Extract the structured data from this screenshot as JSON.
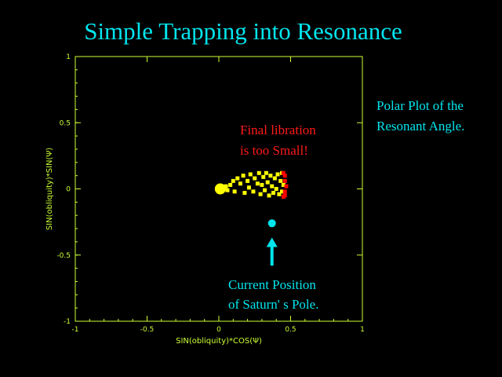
{
  "slide": {
    "title": "Simple Trapping into Resonance",
    "side_note": [
      "Polar Plot of the",
      "Resonant Angle."
    ],
    "annotation_red": [
      "Final libration",
      "is too Small!"
    ],
    "annotation_cyan": [
      "Current Position",
      "of Saturn' s Pole."
    ]
  },
  "colors": {
    "background": "#000000",
    "axes": "#ccff33",
    "text_cyan": "#00e5ee",
    "text_red": "#ff1a1a",
    "points_yellow": "#ffff00",
    "points_red": "#ff0000",
    "marker": "#00e5ee"
  },
  "chart_data": {
    "type": "scatter",
    "xlabel": "SIN(obliquity)*COS(Ψ)",
    "ylabel": "SIN(obliquity)*SIN(Ψ)",
    "xlim": [
      -1,
      1
    ],
    "ylim": [
      -1,
      1
    ],
    "xticks": [
      -1,
      -0.5,
      0,
      0.5,
      1
    ],
    "yticks": [
      -1,
      -0.5,
      0,
      0.5,
      1
    ],
    "xtick_labels": [
      "-1",
      "-0.5",
      "0",
      "0.5",
      "1"
    ],
    "ytick_labels": [
      "-1",
      "-0.5",
      "0",
      "0.5",
      "1"
    ],
    "grid": false,
    "series": [
      {
        "color": "#ffff00",
        "note": "trajectory cloud, x≈0.0–0.46, y≈-0.06–0.13",
        "points": [
          [
            0.01,
            0.0
          ],
          [
            0.02,
            0.01
          ],
          [
            0.0,
            -0.02
          ],
          [
            0.03,
            0.0
          ],
          [
            0.05,
            0.02
          ],
          [
            0.06,
            -0.01
          ],
          [
            0.08,
            0.03
          ],
          [
            0.1,
            0.06
          ],
          [
            0.11,
            -0.02
          ],
          [
            0.13,
            0.08
          ],
          [
            0.15,
            0.04
          ],
          [
            0.17,
            0.1
          ],
          [
            0.18,
            -0.03
          ],
          [
            0.2,
            0.06
          ],
          [
            0.21,
            0.01
          ],
          [
            0.22,
            0.11
          ],
          [
            0.24,
            -0.02
          ],
          [
            0.25,
            0.08
          ],
          [
            0.27,
            0.04
          ],
          [
            0.28,
            0.12
          ],
          [
            0.29,
            -0.04
          ],
          [
            0.3,
            0.03
          ],
          [
            0.31,
            0.09
          ],
          [
            0.32,
            -0.01
          ],
          [
            0.33,
            0.12
          ],
          [
            0.34,
            0.05
          ],
          [
            0.35,
            -0.05
          ],
          [
            0.36,
            0.1
          ],
          [
            0.37,
            0.02
          ],
          [
            0.38,
            -0.03
          ],
          [
            0.39,
            0.08
          ],
          [
            0.4,
            0.0
          ],
          [
            0.41,
            0.11
          ],
          [
            0.42,
            -0.04
          ],
          [
            0.43,
            0.06
          ],
          [
            0.44,
            0.12
          ],
          [
            0.44,
            -0.02
          ],
          [
            0.45,
            0.03
          ]
        ]
      },
      {
        "color": "#ff0000",
        "note": "final libration, x≈0.44–0.47",
        "points": [
          [
            0.45,
            0.12
          ],
          [
            0.46,
            0.1
          ],
          [
            0.46,
            0.06
          ],
          [
            0.47,
            0.02
          ],
          [
            0.46,
            -0.02
          ],
          [
            0.46,
            -0.05
          ],
          [
            0.45,
            -0.06
          ]
        ]
      }
    ],
    "marker": {
      "label": "Current Position of Saturn' s Pole.",
      "x": 0.37,
      "y": -0.26
    },
    "arrow": {
      "from": [
        0.37,
        -0.58
      ],
      "to": [
        0.37,
        -0.38
      ]
    }
  }
}
